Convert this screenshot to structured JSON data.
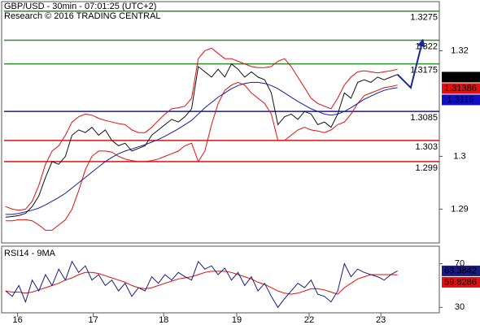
{
  "chart_data": [
    {
      "type": "line",
      "title": "GBP/USD - 30min - 07:01:25 (UTC+2)",
      "subtitle": "Research © 2016 TRADING CENTRAL",
      "x": [
        0,
        1,
        2,
        3,
        4,
        5,
        6,
        7,
        8,
        9,
        10,
        11,
        12,
        13,
        14,
        15,
        16,
        17,
        18,
        19,
        20,
        21,
        22,
        23,
        24,
        25,
        26,
        27,
        28,
        29,
        30,
        31,
        32,
        33,
        34,
        35,
        36,
        37,
        38,
        39,
        40,
        41,
        42,
        43,
        44,
        45,
        46,
        47,
        48,
        49,
        50,
        51,
        52,
        53,
        54,
        55,
        56,
        57,
        58,
        59
      ],
      "xlim": [
        -0.6,
        65.3
      ],
      "ylim": [
        1.2836,
        1.3293
      ],
      "yticks": [
        1.29,
        1.3,
        1.32
      ],
      "series": [
        {
          "color": "#e01010",
          "values": [
            1.2905,
            1.29,
            1.2898,
            1.29,
            1.2915,
            1.2945,
            1.2985,
            1.301,
            1.302,
            1.304,
            1.3065,
            1.3075,
            1.308,
            1.3078,
            1.3072,
            1.3068,
            1.3065,
            1.3062,
            1.306,
            1.305,
            1.3045,
            1.3045,
            1.3055,
            1.3068,
            1.308,
            1.309,
            1.3092,
            1.3095,
            1.311,
            1.3185,
            1.32,
            1.3205,
            1.3195,
            1.3185,
            1.3185,
            1.318,
            1.3175,
            1.317,
            1.3168,
            1.3168,
            1.317,
            1.318,
            1.3185,
            1.317,
            1.315,
            1.313,
            1.311,
            1.31,
            1.3095,
            1.309,
            1.311,
            1.3135,
            1.315,
            1.316,
            1.3162,
            1.316,
            1.3158,
            1.316,
            1.3162,
            1.3165
          ]
        },
        {
          "color": "#e01010",
          "values": [
            1.2878,
            1.2878,
            1.288,
            1.288,
            1.2878,
            1.287,
            1.286,
            1.286,
            1.287,
            1.288,
            1.29,
            1.2935,
            1.2975,
            1.3,
            1.301,
            1.301,
            1.3008,
            1.3,
            1.2995,
            1.2992,
            1.299,
            1.299,
            1.2992,
            1.2995,
            1.3,
            1.3005,
            1.301,
            1.302,
            1.3025,
            1.299,
            1.301,
            1.306,
            1.31,
            1.3125,
            1.3135,
            1.314,
            1.3135,
            1.312,
            1.311,
            1.31,
            1.308,
            1.303,
            1.303,
            1.304,
            1.305,
            1.3055,
            1.305,
            1.3048,
            1.3045,
            1.305,
            1.306,
            1.3065,
            1.308,
            1.31,
            1.3115,
            1.312,
            1.3125,
            1.313,
            1.3132,
            1.3135
          ]
        },
        {
          "color": "#1a1aa0",
          "values": [
            1.289,
            1.289,
            1.2892,
            1.2895,
            1.2898,
            1.2902,
            1.2908,
            1.2915,
            1.2922,
            1.293,
            1.294,
            1.295,
            1.296,
            1.297,
            1.298,
            1.299,
            1.2998,
            1.3005,
            1.301,
            1.3014,
            1.3018,
            1.3022,
            1.3027,
            1.3032,
            1.3038,
            1.3045,
            1.3052,
            1.306,
            1.3068,
            1.308,
            1.3092,
            1.3102,
            1.3112,
            1.312,
            1.3128,
            1.3134,
            1.3138,
            1.314,
            1.314,
            1.3138,
            1.3134,
            1.3128,
            1.312,
            1.3112,
            1.3104,
            1.3097,
            1.309,
            1.3085,
            1.308,
            1.3078,
            1.308,
            1.3085,
            1.3092,
            1.31,
            1.3108,
            1.3114,
            1.312,
            1.3125,
            1.3128,
            1.313
          ]
        },
        {
          "color": "#111111",
          "values": [
            1.2885,
            1.2886,
            1.2888,
            1.2892,
            1.2905,
            1.2925,
            1.296,
            1.299,
            1.2985,
            1.3,
            1.304,
            1.305,
            1.3045,
            1.3055,
            1.304,
            1.305,
            1.303,
            1.302,
            1.3025,
            1.301,
            1.3015,
            1.302,
            1.304,
            1.305,
            1.306,
            1.307,
            1.3065,
            1.3075,
            1.309,
            1.317,
            1.316,
            1.315,
            1.3165,
            1.315,
            1.3175,
            1.3165,
            1.315,
            1.316,
            1.315,
            1.3145,
            1.312,
            1.306,
            1.3075,
            1.308,
            1.307,
            1.3085,
            1.308,
            1.306,
            1.3065,
            1.3055,
            1.308,
            1.312,
            1.311,
            1.314,
            1.3145,
            1.314,
            1.315,
            1.3145,
            1.315,
            1.3155
          ]
        }
      ],
      "levels": {
        "values": [
          1.3275,
          1.322,
          1.3175,
          1.3085,
          1.303,
          1.299
        ],
        "colors": [
          "#2e8b2e",
          "#2e8b2e",
          "#2e8b2e",
          "#1a1aa0",
          "#d01818",
          "#d01818"
        ]
      },
      "projection": {
        "x": [
          59,
          61,
          62.8
        ],
        "values": [
          1.3155,
          1.313,
          1.322
        ],
        "color": "#1a2a8a"
      },
      "tags": [
        {
          "value": 1.315,
          "color": "#000000"
        },
        {
          "value": 1.31386,
          "color": "#e01010"
        },
        {
          "value": 1.3116,
          "color": "#1010c0"
        }
      ]
    },
    {
      "type": "line",
      "title": "RSI14 - 9MA",
      "x": [
        0,
        1,
        2,
        3,
        4,
        5,
        6,
        7,
        8,
        9,
        10,
        11,
        12,
        13,
        14,
        15,
        16,
        17,
        18,
        19,
        20,
        21,
        22,
        23,
        24,
        25,
        26,
        27,
        28,
        29,
        30,
        31,
        32,
        33,
        34,
        35,
        36,
        37,
        38,
        39,
        40,
        41,
        42,
        43,
        44,
        45,
        46,
        47,
        48,
        49,
        50,
        51,
        52,
        53,
        54,
        55,
        56,
        57,
        58,
        59
      ],
      "xlim": [
        -0.6,
        65.3
      ],
      "ylim": [
        25,
        86
      ],
      "yticks": [
        30,
        70
      ],
      "xticks": [
        {
          "value": 1.8,
          "label": "16"
        },
        {
          "value": 13.2,
          "label": "17"
        },
        {
          "value": 23.8,
          "label": "18"
        },
        {
          "value": 34.8,
          "label": "19"
        },
        {
          "value": 45.7,
          "label": "22"
        },
        {
          "value": 56.5,
          "label": "23"
        }
      ],
      "series": [
        {
          "color": "#e01010",
          "values": [
            45,
            44,
            44,
            43,
            44,
            46,
            48,
            50,
            52,
            55,
            57,
            60,
            62,
            62,
            61,
            59,
            57,
            55,
            53,
            50,
            48,
            47,
            48,
            50,
            52,
            54,
            56,
            57,
            58,
            60,
            62,
            63,
            63,
            63,
            62,
            60,
            58,
            56,
            53,
            51,
            48,
            45,
            43,
            42,
            43,
            45,
            47,
            47,
            46,
            44,
            42,
            48,
            52,
            56,
            58,
            60,
            60,
            60,
            60,
            59.8286
          ]
        },
        {
          "color": "#1a1a80",
          "values": [
            45,
            40,
            50,
            35,
            55,
            45,
            60,
            50,
            65,
            55,
            72,
            62,
            68,
            55,
            60,
            50,
            55,
            45,
            52,
            40,
            48,
            45,
            58,
            52,
            60,
            55,
            62,
            58,
            55,
            72,
            65,
            68,
            60,
            66,
            55,
            62,
            50,
            58,
            45,
            52,
            40,
            30,
            38,
            45,
            52,
            48,
            55,
            42,
            40,
            35,
            45,
            70,
            58,
            65,
            62,
            60,
            58,
            55,
            60,
            63.3842
          ]
        }
      ],
      "tags": [
        {
          "value": 63.3842,
          "color": "#1a1a80"
        },
        {
          "value": 59.8286,
          "color": "#e01010"
        }
      ]
    }
  ]
}
